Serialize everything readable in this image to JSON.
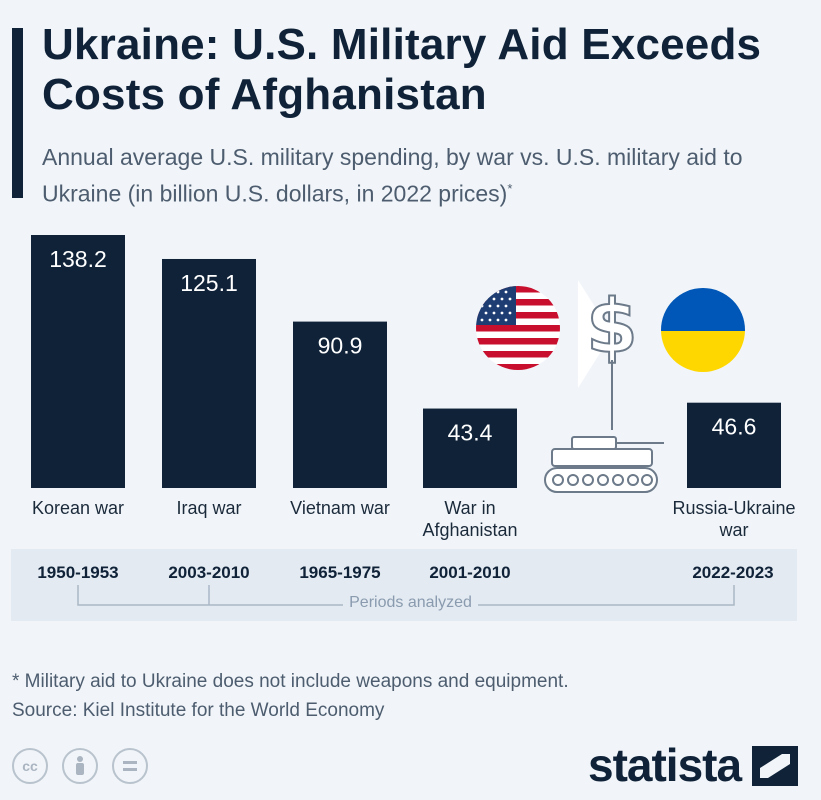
{
  "header": {
    "title": "Ukraine: U.S. Military Aid Exceeds Costs of Afghanistan",
    "subtitle": "Annual average U.S. military spending, by war vs. U.S. military aid to Ukraine (in billion U.S. dollars, in 2022 prices)",
    "subtitle_mark": "*"
  },
  "chart_data": {
    "type": "bar",
    "title": "Ukraine: U.S. Military Aid Exceeds Costs of Afghanistan",
    "subtitle": "Annual average U.S. military spending, by war vs. U.S. military aid to Ukraine (in billion U.S. dollars, in 2022 prices)",
    "categories": [
      "Korean war",
      "Iraq war",
      "Vietnam war",
      "War in Afghanistan",
      "Russia-Ukraine war"
    ],
    "category_lines": [
      [
        "Korean war"
      ],
      [
        "Iraq war"
      ],
      [
        "Vietnam war"
      ],
      [
        "War in",
        "Afghanistan"
      ],
      [
        "Russia-Ukraine",
        "war"
      ]
    ],
    "values": [
      138.2,
      125.1,
      90.9,
      43.4,
      46.6
    ],
    "value_labels": [
      "138.2",
      "125.1",
      "90.9",
      "43.4",
      "46.6"
    ],
    "periods": [
      "1950-1953",
      "2003-2010",
      "1965-1975",
      "2001-2010",
      "2022-2023"
    ],
    "ylim": [
      0,
      138.2
    ],
    "grid": false,
    "bar_color": "#0f2238"
  },
  "periods_note": "Periods analyzed",
  "footer": {
    "footnote": "* Military aid to Ukraine does not include weapons and equipment.",
    "source": "Source: Kiel Institute for the World Economy",
    "license_icons": [
      "cc-icon",
      "attribution-icon",
      "no-derivatives-icon"
    ],
    "brand": "statista"
  },
  "illustrations": [
    "us-flag-icon",
    "dollar-sign-icon",
    "tank-icon",
    "ukraine-flag-icon"
  ],
  "colors": {
    "navy": "#0f2238",
    "background": "#f1f5f9",
    "period_band": "#e3eaf1",
    "ukraine_blue": "#0057b7",
    "ukraine_yellow": "#ffd700",
    "us_red": "#c8102e"
  }
}
